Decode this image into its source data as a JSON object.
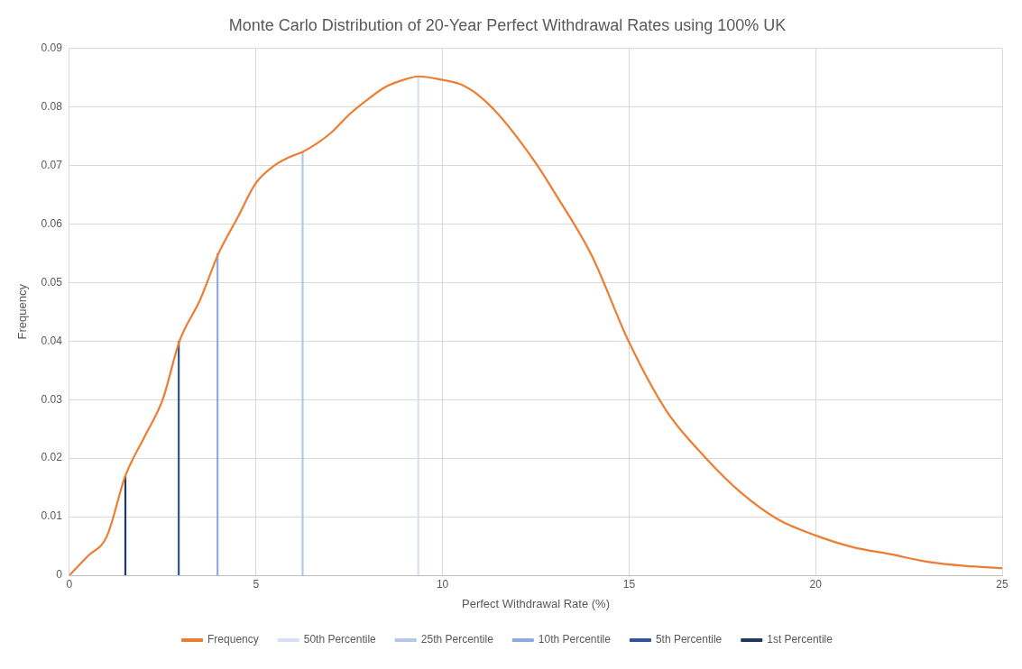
{
  "chart_data": {
    "type": "line",
    "title": "Monte Carlo Distribution of 20-Year Perfect Withdrawal Rates using 100% UK",
    "xlabel": "Perfect Withdrawal Rate (%)",
    "ylabel": "Frequency",
    "x": [
      0,
      0.5,
      1,
      1.5,
      2,
      2.5,
      2.95,
      3.5,
      4,
      4.5,
      5,
      5.5,
      6,
      6.25,
      7,
      7.5,
      8,
      8.5,
      9,
      9.35,
      10,
      10.5,
      11,
      11.5,
      12,
      12.5,
      13,
      14,
      15,
      16,
      17,
      18,
      19,
      20,
      21,
      22,
      23,
      24,
      25
    ],
    "series": [
      {
        "name": "Frequency",
        "color": "#ed7d31",
        "values": [
          0,
          0.0033,
          0.0066,
          0.017,
          0.0235,
          0.03,
          0.04,
          0.047,
          0.055,
          0.061,
          0.067,
          0.07,
          0.0717,
          0.0723,
          0.0755,
          0.0787,
          0.0813,
          0.0835,
          0.0847,
          0.0852,
          0.0846,
          0.0838,
          0.0818,
          0.0787,
          0.0748,
          0.0704,
          0.0654,
          0.0546,
          0.0398,
          0.0281,
          0.0204,
          0.0141,
          0.0095,
          0.0068,
          0.0048,
          0.0036,
          0.0023,
          0.0016,
          0.0012
        ]
      },
      {
        "name": "50th Percentile",
        "color": "#d6e0f2",
        "x": [
          9.35,
          9.35
        ],
        "values": [
          0,
          0.0852
        ]
      },
      {
        "name": "25th Percentile",
        "color": "#b4c7e7",
        "x": [
          6.25,
          6.25
        ],
        "values": [
          0,
          0.0723
        ]
      },
      {
        "name": "10th Percentile",
        "color": "#8faadc",
        "x": [
          3.97,
          3.97
        ],
        "values": [
          0,
          0.055
        ]
      },
      {
        "name": "5th Percentile",
        "color": "#2f5597",
        "x": [
          2.93,
          2.93
        ],
        "values": [
          0,
          0.04
        ]
      },
      {
        "name": "1st Percentile",
        "color": "#1f3864",
        "x": [
          1.5,
          1.5
        ],
        "values": [
          0,
          0.017
        ]
      }
    ],
    "xlim": [
      0,
      25
    ],
    "xticks": [
      0,
      5,
      10,
      15,
      20,
      25
    ],
    "ylim": [
      0,
      0.09
    ],
    "yticks": [
      0,
      0.01,
      0.02,
      0.03,
      0.04,
      0.05,
      0.06,
      0.07,
      0.08,
      0.09
    ],
    "grid": true,
    "legend": "bottom",
    "marker": "none",
    "line_style": "solid"
  }
}
